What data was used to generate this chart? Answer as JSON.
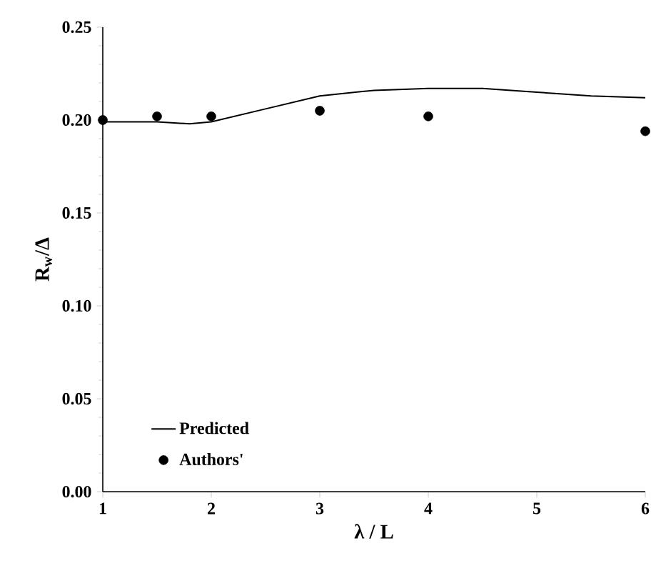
{
  "chart_data": {
    "type": "line",
    "xlabel": "λ / L",
    "ylabel": "R$_{w}$/Δ",
    "xlim": [
      1,
      6
    ],
    "ylim": [
      0,
      0.25
    ],
    "xticks": [
      1,
      2,
      3,
      4,
      5,
      6
    ],
    "yticks": [
      {
        "value": 0,
        "label": "0.00"
      },
      {
        "value": 0.05,
        "label": "0.05"
      },
      {
        "value": 0.1,
        "label": "0.10"
      },
      {
        "value": 0.15,
        "label": "0.15"
      },
      {
        "value": 0.2,
        "label": "0.20"
      },
      {
        "value": 0.25,
        "label": "0.25"
      }
    ],
    "legend": "bottom left",
    "grid": false,
    "series": [
      {
        "name": "Predicted",
        "color": "#000000",
        "line_style": "solid",
        "x": [
          1,
          1.5,
          1.8,
          2,
          2.5,
          3,
          3.5,
          4,
          4.5,
          5,
          5.5,
          6
        ],
        "values": [
          0.199,
          0.199,
          0.198,
          0.199,
          0.206,
          0.213,
          0.216,
          0.217,
          0.217,
          0.215,
          0.213,
          0.212
        ]
      },
      {
        "name": "Authors'",
        "type": "scatter",
        "color": "#000000",
        "marker": "circle",
        "x": [
          1,
          1.5,
          2,
          3,
          4,
          6
        ],
        "values": [
          0.2,
          0.202,
          0.202,
          0.205,
          0.202,
          0.194
        ]
      }
    ]
  }
}
